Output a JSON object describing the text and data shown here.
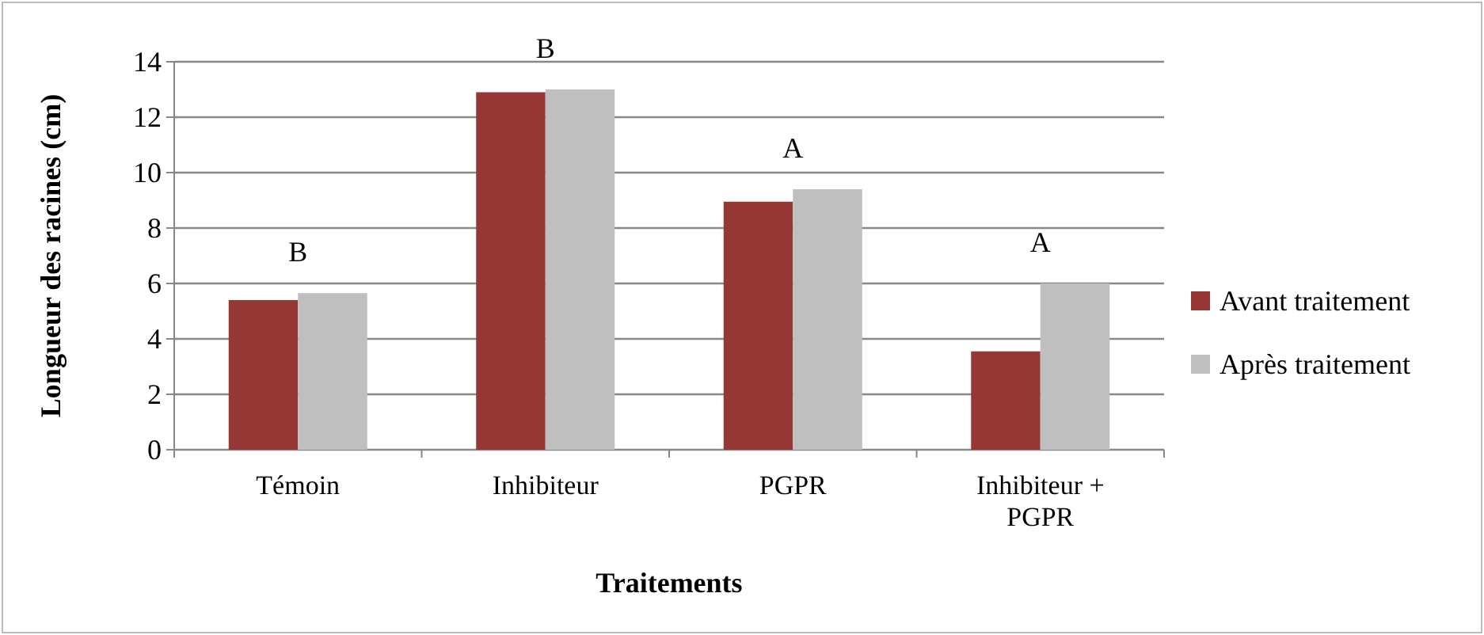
{
  "chart_data": {
    "type": "bar",
    "xlabel": "Traitements",
    "ylabel": "Longueur des racines (cm)",
    "categories": [
      "Témoin",
      "Inhibiteur",
      "PGPR",
      "Inhibiteur + PGPR"
    ],
    "series": [
      {
        "name": "Avant traitement",
        "color": "#953735",
        "values": [
          5.4,
          12.9,
          8.95,
          3.55
        ]
      },
      {
        "name": "Après traitement",
        "color": "#bfbfbf",
        "values": [
          5.65,
          13.0,
          9.4,
          6.0
        ]
      }
    ],
    "ylim": [
      0,
      14
    ],
    "yticks": [
      0,
      2,
      4,
      6,
      8,
      10,
      12,
      14
    ],
    "grid": "y",
    "legend": "right",
    "annotations": [
      "B",
      "B",
      "A",
      "A"
    ]
  }
}
